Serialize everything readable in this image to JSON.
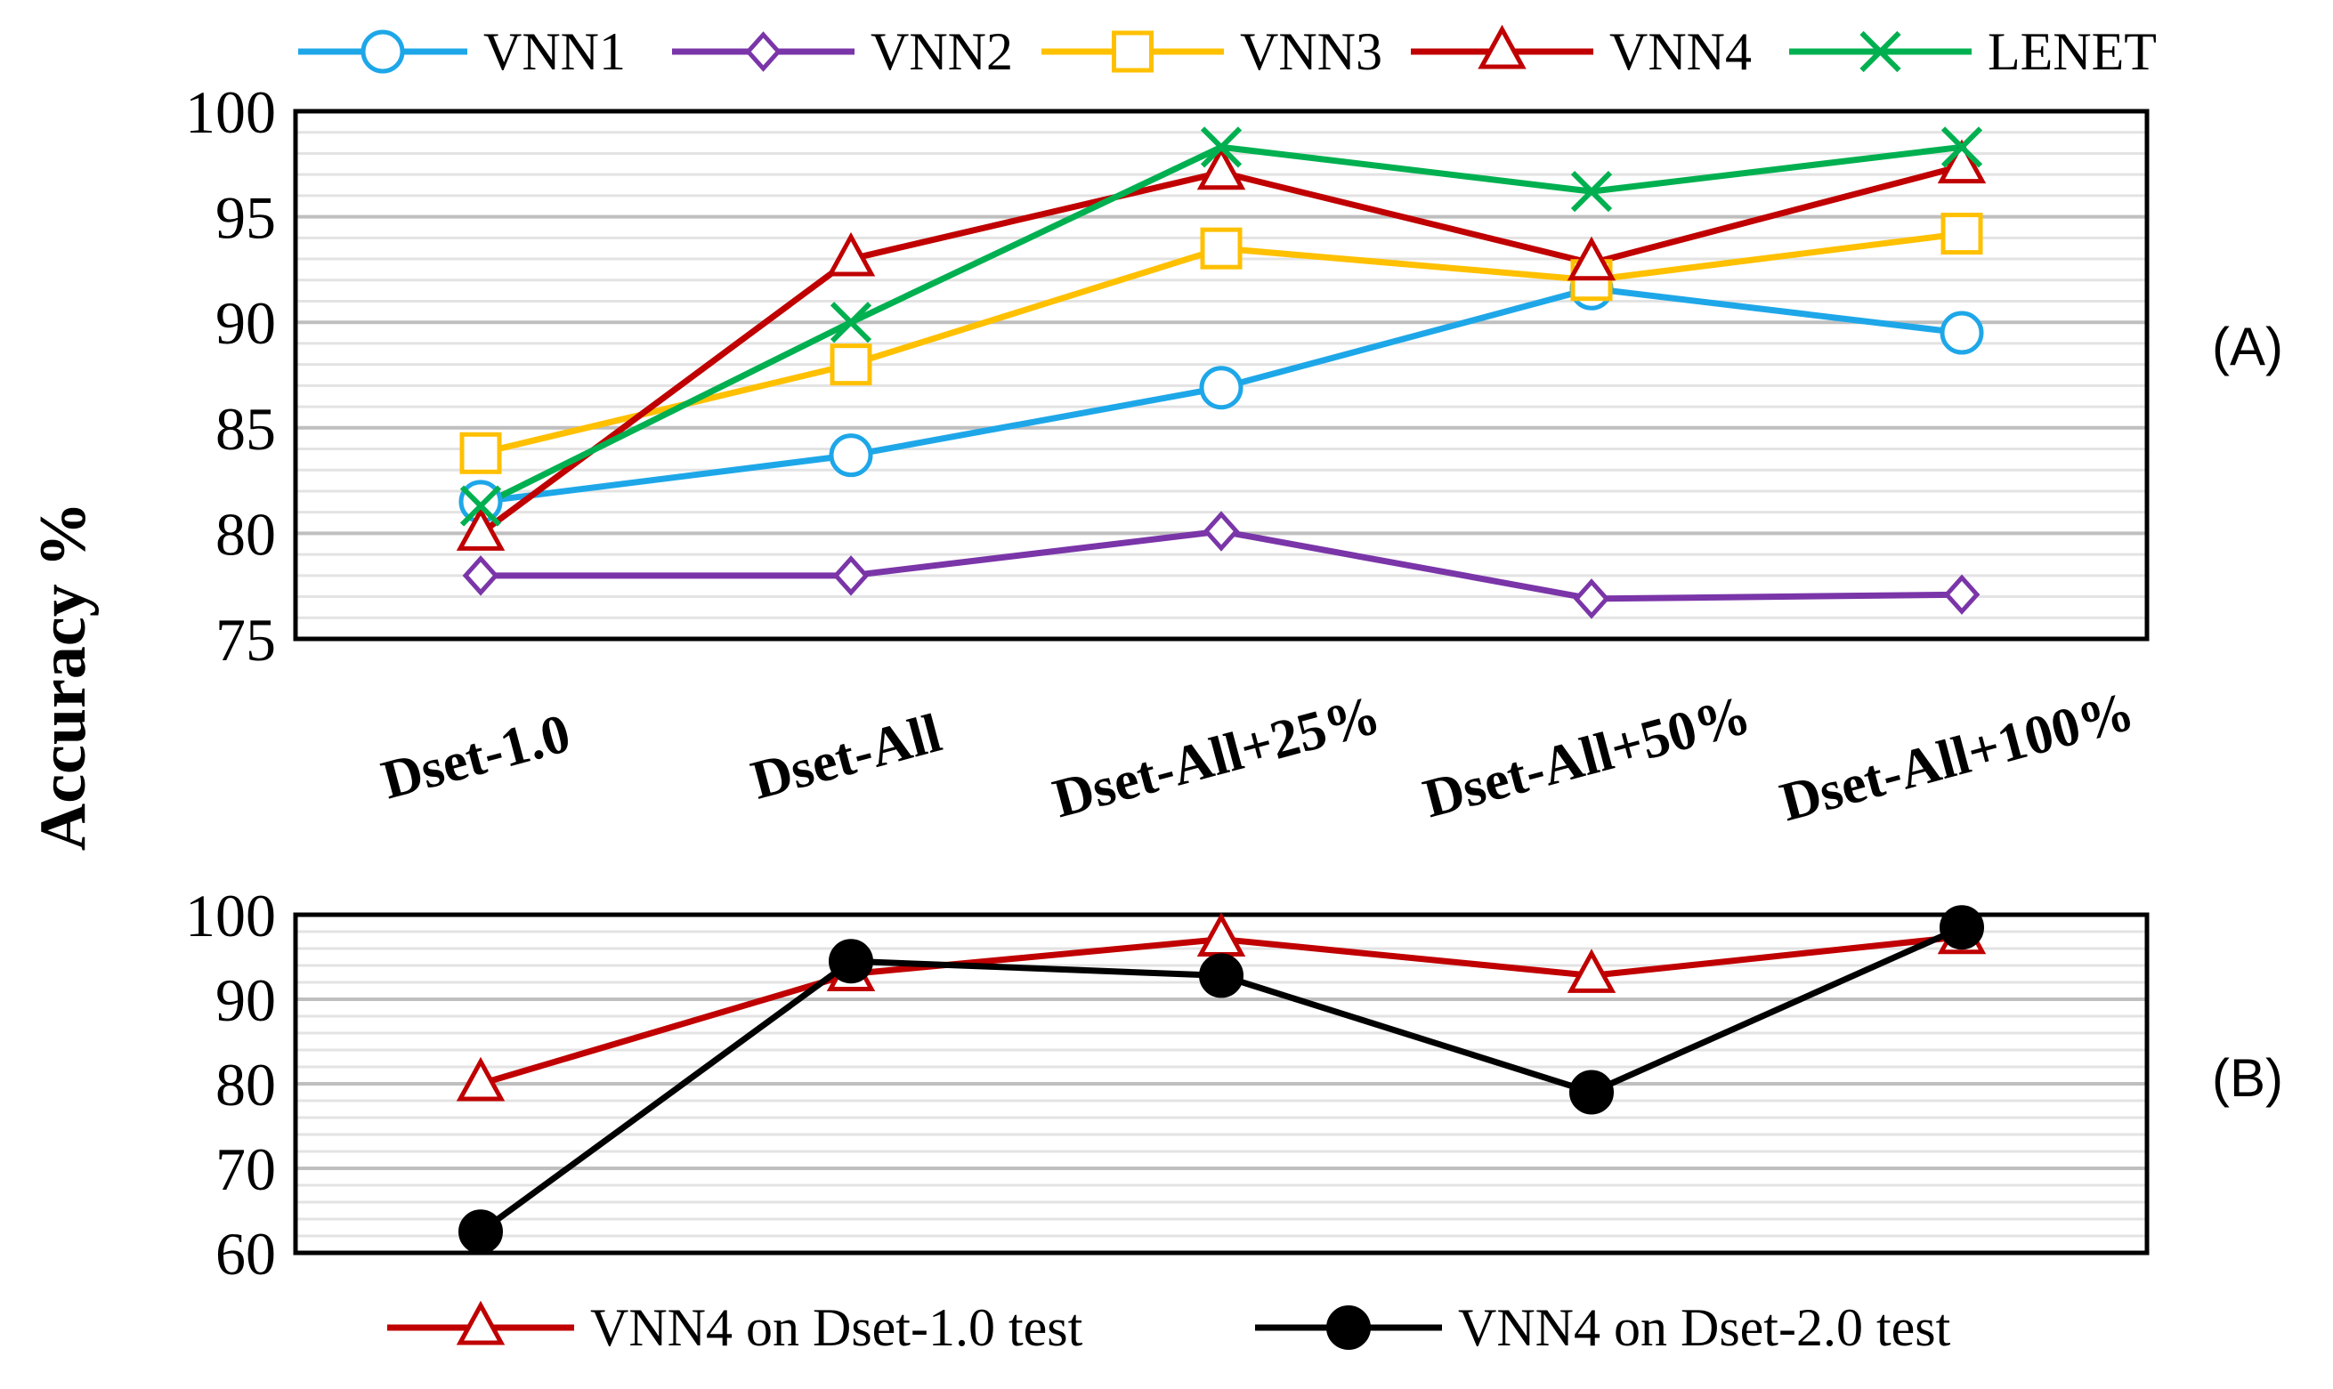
{
  "chart_data": [
    {
      "type": "line",
      "panel_label": "(A)",
      "ylabel": "Accuracy %",
      "categories": [
        "Dset-1.0",
        "Dset-All",
        "Dset-All+25%",
        "Dset-All+50%",
        "Dset-All+100%"
      ],
      "ylim": [
        75,
        100
      ],
      "yticks": [
        "75",
        "80",
        "85",
        "90",
        "95",
        "100"
      ],
      "grid": true,
      "legend_position": "top",
      "series": [
        {
          "name": "VNN1",
          "values": [
            81.5,
            83.7,
            86.9,
            91.6,
            89.5
          ],
          "color": "#1ea7e8",
          "marker": "circle"
        },
        {
          "name": "VNN2",
          "values": [
            78.0,
            78.0,
            80.1,
            76.9,
            77.1
          ],
          "color": "#7a35a8",
          "marker": "diamond"
        },
        {
          "name": "VNN3",
          "values": [
            83.8,
            88.0,
            93.5,
            92.0,
            94.2
          ],
          "color": "#ffc000",
          "marker": "square"
        },
        {
          "name": "VNN4",
          "values": [
            80.0,
            93.0,
            97.1,
            92.8,
            97.4
          ],
          "color": "#c00000",
          "marker": "triangle"
        },
        {
          "name": "LENET",
          "values": [
            81.3,
            90.0,
            98.3,
            96.2,
            98.3
          ],
          "color": "#00b050",
          "marker": "x"
        }
      ]
    },
    {
      "type": "line",
      "panel_label": "(B)",
      "categories": [
        "Dset-1.0",
        "Dset-All",
        "Dset-All+25%",
        "Dset-All+50%",
        "Dset-All+100%"
      ],
      "ylim": [
        60,
        100
      ],
      "yticks": [
        "60",
        "70",
        "80",
        "90",
        "100"
      ],
      "grid": true,
      "legend_position": "bottom",
      "series": [
        {
          "name": "VNN4 on Dset-1.0 test",
          "values": [
            80.0,
            93.0,
            97.1,
            92.8,
            97.4
          ],
          "color": "#c00000",
          "marker": "triangle"
        },
        {
          "name": "VNN4 on Dset-2.0 test",
          "values": [
            62.5,
            94.5,
            92.8,
            79.0,
            98.5
          ],
          "color": "#000000",
          "marker": "dot"
        }
      ]
    }
  ]
}
